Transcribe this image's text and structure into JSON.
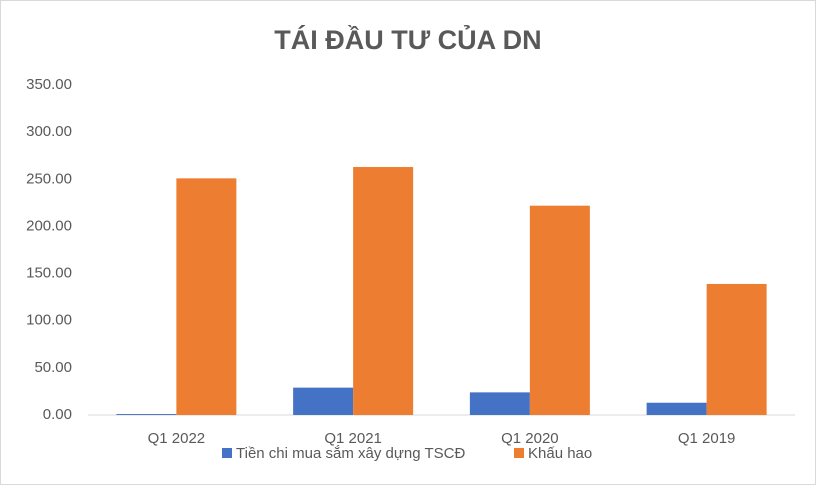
{
  "chart_data": {
    "type": "bar",
    "title": "TÁI ĐẦU TƯ CỦA DN",
    "categories": [
      "Q1 2022",
      "Q1 2021",
      "Q1 2020",
      "Q1 2019"
    ],
    "series": [
      {
        "name": "Tiền chi mua sắm xây dựng TSCĐ",
        "color": "#4472c4",
        "values": [
          1,
          29,
          24,
          13
        ]
      },
      {
        "name": "Khấu hao",
        "color": "#ed7d31",
        "values": [
          251,
          263,
          222,
          139
        ]
      }
    ],
    "ylim": [
      0,
      350
    ],
    "yticks": [
      {
        "value": 0,
        "label": "0.00"
      },
      {
        "value": 50,
        "label": "50.00"
      },
      {
        "value": 100,
        "label": "100.00"
      },
      {
        "value": 150,
        "label": "150.00"
      },
      {
        "value": 200,
        "label": "200.00"
      },
      {
        "value": 250,
        "label": "250.00"
      },
      {
        "value": 300,
        "label": "300.00"
      },
      {
        "value": 350,
        "label": "350.00"
      }
    ],
    "grid": false,
    "legend": "bottom"
  }
}
